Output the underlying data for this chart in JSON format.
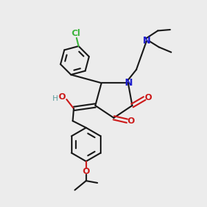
{
  "bg_color": "#ececec",
  "bond_color": "#1a1a1a",
  "N_color": "#1a1acc",
  "O_color": "#cc1a1a",
  "Cl_color": "#3ab33a",
  "H_color": "#5a9a9a",
  "line_width": 1.6,
  "figsize": [
    3.0,
    3.0
  ],
  "dpi": 100,
  "xlim": [
    0,
    10
  ],
  "ylim": [
    0,
    10
  ]
}
